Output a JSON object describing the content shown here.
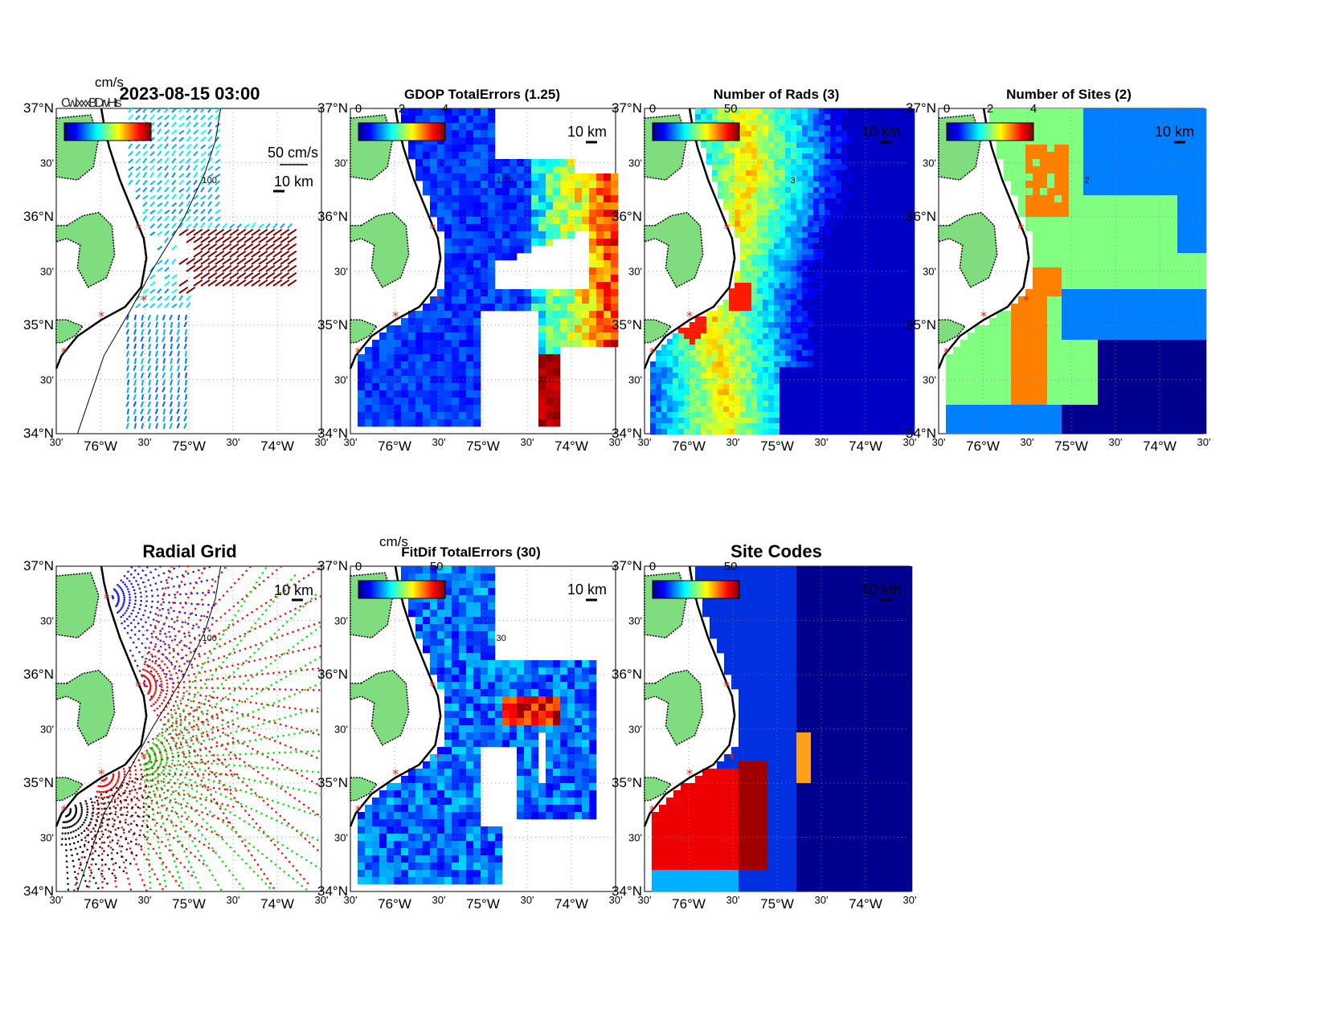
{
  "axes": {
    "lat_labels": [
      "37°N",
      "30'",
      "36°N",
      "30'",
      "35°N",
      "30'",
      "34°N"
    ],
    "lon_labels": [
      "30'",
      "76°W",
      "30'",
      "75°W",
      "30'",
      "74°W",
      "30'"
    ]
  },
  "colormap": {
    "jet": [
      "#00008f",
      "#0000ff",
      "#0080ff",
      "#00ffff",
      "#80ff80",
      "#ffff00",
      "#ff8000",
      "#ff0000",
      "#800000"
    ],
    "land": "#7fdc7f",
    "ocean": "#ffffff",
    "site_marker": "#e8221c"
  },
  "panels": [
    {
      "id": "totals",
      "title": "2023-08-15 03:00",
      "colorbar_units": "cm/s",
      "colorbar_ticks": [],
      "overlapped_labels": "Cwl xxxBDrvHts",
      "scale_vector_label": "50 cm/s",
      "scale_bar_label": "10 km",
      "contour_label": "100"
    },
    {
      "id": "gdop",
      "title": "GDOP TotalErrors (1.25)",
      "colorbar_ticks": [
        "0",
        "2",
        "4"
      ],
      "scale_bar_label": "10 km",
      "contour_label": "1.25"
    },
    {
      "id": "nrads",
      "title": "Number of Rads (3)",
      "colorbar_ticks": [
        "0",
        "50"
      ],
      "scale_bar_label": "10 km",
      "contour_label": "3"
    },
    {
      "id": "nsites",
      "title": "Number of Sites (2)",
      "colorbar_ticks": [
        "0",
        "2",
        "4"
      ],
      "scale_bar_label": "10 km",
      "contour_label": "2"
    },
    {
      "id": "radial_grid",
      "title": "Radial Grid",
      "scale_bar_label": "10 km",
      "contour_label": "100"
    },
    {
      "id": "fitdif",
      "title": "FitDif TotalErrors (30)",
      "colorbar_units": "cm/s",
      "colorbar_ticks": [
        "0",
        "50"
      ],
      "scale_bar_label": "10 km",
      "contour_label": "30"
    },
    {
      "id": "site_codes",
      "title": "Site Codes",
      "colorbar_ticks": [
        "0",
        "50"
      ],
      "scale_bar_label": "10 km"
    }
  ]
}
